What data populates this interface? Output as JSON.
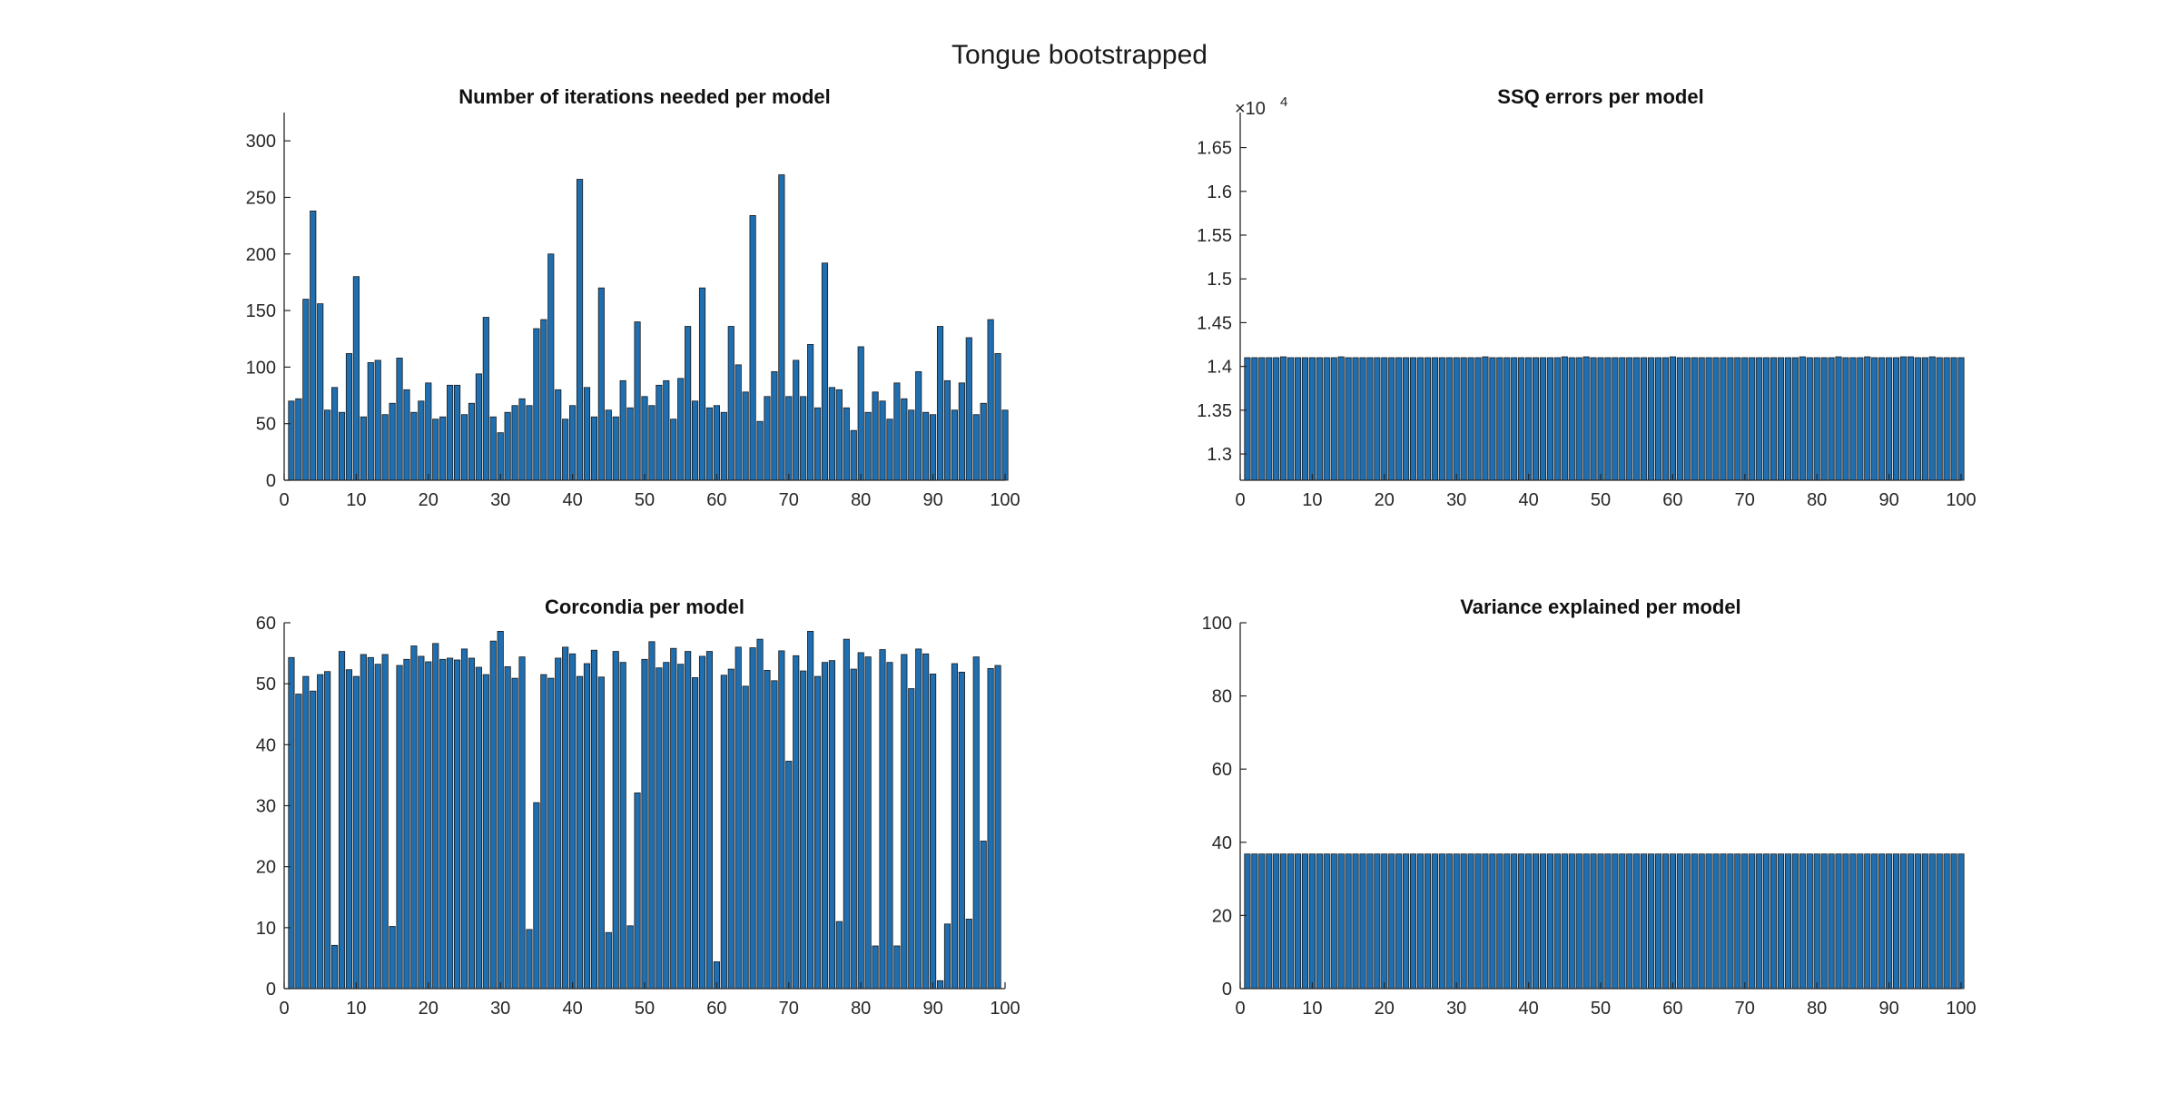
{
  "figure": {
    "title": "Tongue bootstrapped"
  },
  "colors": {
    "bar_fill": "#1f6fb0",
    "bar_edge": "#1a1a1a",
    "axis": "#262626",
    "text": "#262626"
  },
  "chart_data": [
    {
      "type": "bar",
      "title": "Number of iterations needed per model",
      "xlabel": "",
      "ylabel": "",
      "xlim": [
        0,
        100
      ],
      "ylim": [
        0,
        325
      ],
      "xticks": [
        0,
        10,
        20,
        30,
        40,
        50,
        60,
        70,
        80,
        90,
        100
      ],
      "yticks": [
        0,
        50,
        100,
        150,
        200,
        250,
        300
      ],
      "ytick_labels": [
        "0",
        "50",
        "100",
        "150",
        "200",
        "250",
        "300"
      ],
      "exponent_label": "",
      "x": [
        1,
        2,
        3,
        4,
        5,
        6,
        7,
        8,
        9,
        10,
        11,
        12,
        13,
        14,
        15,
        16,
        17,
        18,
        19,
        20,
        21,
        22,
        23,
        24,
        25,
        26,
        27,
        28,
        29,
        30,
        31,
        32,
        33,
        34,
        35,
        36,
        37,
        38,
        39,
        40,
        41,
        42,
        43,
        44,
        45,
        46,
        47,
        48,
        49,
        50,
        51,
        52,
        53,
        54,
        55,
        56,
        57,
        58,
        59,
        60,
        61,
        62,
        63,
        64,
        65,
        66,
        67,
        68,
        69,
        70,
        71,
        72,
        73,
        74,
        75,
        76,
        77,
        78,
        79,
        80,
        81,
        82,
        83,
        84,
        85,
        86,
        87,
        88,
        89,
        90,
        91,
        92,
        93,
        94,
        95,
        96,
        97,
        98,
        99,
        100
      ],
      "values": [
        70,
        72,
        160,
        238,
        156,
        62,
        82,
        60,
        112,
        180,
        56,
        104,
        106,
        58,
        68,
        108,
        80,
        60,
        70,
        86,
        54,
        56,
        84,
        84,
        58,
        68,
        94,
        144,
        56,
        42,
        60,
        66,
        72,
        66,
        134,
        142,
        200,
        80,
        54,
        66,
        266,
        82,
        56,
        170,
        62,
        56,
        88,
        64,
        140,
        74,
        66,
        84,
        88,
        54,
        90,
        136,
        70,
        170,
        64,
        66,
        60,
        136,
        102,
        78,
        234,
        52,
        74,
        96,
        270,
        74,
        106,
        74,
        120,
        64,
        192,
        82,
        80,
        64,
        44,
        118,
        60,
        78,
        70,
        54,
        86,
        72,
        62,
        96,
        60,
        58,
        136,
        88,
        62,
        86,
        126,
        58,
        68,
        142,
        112,
        62
      ]
    },
    {
      "type": "bar",
      "title": "SSQ errors per model",
      "xlabel": "",
      "ylabel": "",
      "xlim": [
        0,
        100
      ],
      "ylim": [
        12700,
        16900
      ],
      "xticks": [
        0,
        10,
        20,
        30,
        40,
        50,
        60,
        70,
        80,
        90,
        100
      ],
      "yticks": [
        13000,
        13500,
        14000,
        14500,
        15000,
        15500,
        16000,
        16500
      ],
      "ytick_labels": [
        "1.3",
        "1.35",
        "1.4",
        "1.45",
        "1.5",
        "1.55",
        "1.6",
        "1.65"
      ],
      "exponent_label": "×10",
      "exponent_power": "4",
      "x": [
        1,
        2,
        3,
        4,
        5,
        6,
        7,
        8,
        9,
        10,
        11,
        12,
        13,
        14,
        15,
        16,
        17,
        18,
        19,
        20,
        21,
        22,
        23,
        24,
        25,
        26,
        27,
        28,
        29,
        30,
        31,
        32,
        33,
        34,
        35,
        36,
        37,
        38,
        39,
        40,
        41,
        42,
        43,
        44,
        45,
        46,
        47,
        48,
        49,
        50,
        51,
        52,
        53,
        54,
        55,
        56,
        57,
        58,
        59,
        60,
        61,
        62,
        63,
        64,
        65,
        66,
        67,
        68,
        69,
        70,
        71,
        72,
        73,
        74,
        75,
        76,
        77,
        78,
        79,
        80,
        81,
        82,
        83,
        84,
        85,
        86,
        87,
        88,
        89,
        90,
        91,
        92,
        93,
        94,
        95,
        96,
        97,
        98,
        99,
        100
      ],
      "values": [
        14100,
        14100,
        14100,
        14100,
        14100,
        14110,
        14100,
        14100,
        14100,
        14100,
        14100,
        14100,
        14100,
        14110,
        14100,
        14100,
        14100,
        14100,
        14100,
        14100,
        14100,
        14100,
        14100,
        14100,
        14100,
        14100,
        14100,
        14100,
        14100,
        14100,
        14100,
        14100,
        14100,
        14110,
        14100,
        14100,
        14100,
        14100,
        14100,
        14100,
        14100,
        14100,
        14100,
        14100,
        14110,
        14100,
        14100,
        14110,
        14100,
        14100,
        14100,
        14100,
        14100,
        14100,
        14100,
        14100,
        14100,
        14100,
        14100,
        14110,
        14100,
        14100,
        14100,
        14100,
        14100,
        14100,
        14100,
        14100,
        14100,
        14100,
        14100,
        14100,
        14100,
        14100,
        14100,
        14100,
        14100,
        14110,
        14100,
        14100,
        14100,
        14100,
        14110,
        14100,
        14100,
        14100,
        14110,
        14100,
        14100,
        14100,
        14100,
        14110,
        14110,
        14100,
        14100,
        14110,
        14100,
        14100,
        14100,
        14100
      ]
    },
    {
      "type": "bar",
      "title": "Corcondia per model",
      "xlabel": "",
      "ylabel": "",
      "xlim": [
        0,
        100
      ],
      "ylim": [
        0,
        60
      ],
      "xticks": [
        0,
        10,
        20,
        30,
        40,
        50,
        60,
        70,
        80,
        90,
        100
      ],
      "yticks": [
        0,
        10,
        20,
        30,
        40,
        50,
        60
      ],
      "ytick_labels": [
        "0",
        "10",
        "20",
        "30",
        "40",
        "50",
        "60"
      ],
      "exponent_label": "",
      "x": [
        1,
        2,
        3,
        4,
        5,
        6,
        7,
        8,
        9,
        10,
        11,
        12,
        13,
        14,
        15,
        16,
        17,
        18,
        19,
        20,
        21,
        22,
        23,
        24,
        25,
        26,
        27,
        28,
        29,
        30,
        31,
        32,
        33,
        34,
        35,
        36,
        37,
        38,
        39,
        40,
        41,
        42,
        43,
        44,
        45,
        46,
        47,
        48,
        49,
        50,
        51,
        52,
        53,
        54,
        55,
        56,
        57,
        58,
        59,
        60,
        61,
        62,
        63,
        64,
        65,
        66,
        67,
        68,
        69,
        70,
        71,
        72,
        73,
        74,
        75,
        76,
        77,
        78,
        79,
        80,
        81,
        82,
        83,
        84,
        85,
        86,
        87,
        88,
        89,
        90,
        91,
        92,
        93,
        94,
        95,
        96,
        97,
        98,
        99,
        100
      ],
      "values": [
        54.3,
        48.3,
        51.2,
        48.8,
        51.5,
        52.0,
        7.1,
        55.3,
        52.3,
        51.2,
        54.8,
        54.3,
        53.2,
        54.8,
        10.2,
        53.0,
        54.0,
        56.2,
        54.5,
        53.6,
        56.6,
        54.0,
        54.2,
        53.9,
        55.7,
        54.2,
        52.7,
        51.5,
        57.0,
        58.6,
        52.8,
        50.9,
        54.4,
        9.7,
        30.5,
        51.5,
        50.9,
        54.2,
        56.0,
        54.9,
        51.2,
        53.3,
        55.5,
        51.1,
        9.2,
        55.3,
        53.5,
        10.3,
        32.1,
        54.0,
        56.9,
        52.6,
        53.5,
        55.8,
        53.2,
        55.3,
        51.0,
        54.5,
        55.3,
        4.4,
        51.4,
        52.4,
        56.0,
        49.6,
        55.9,
        57.3,
        52.2,
        50.5,
        55.4,
        37.3,
        54.6,
        52.1,
        58.6,
        51.2,
        53.5,
        53.8,
        11.0,
        57.3,
        52.4,
        55.1,
        54.4,
        7.0,
        55.6,
        53.5,
        7.0,
        54.8,
        49.2,
        55.7,
        54.9,
        51.6,
        1.3,
        10.6,
        53.3,
        51.9,
        11.4,
        54.4,
        24.2,
        52.5,
        53.0,
        0
      ]
    },
    {
      "type": "bar",
      "title": "Variance explained per model",
      "xlabel": "",
      "ylabel": "",
      "xlim": [
        0,
        100
      ],
      "ylim": [
        0,
        100
      ],
      "xticks": [
        0,
        10,
        20,
        30,
        40,
        50,
        60,
        70,
        80,
        90,
        100
      ],
      "yticks": [
        0,
        20,
        40,
        60,
        80,
        100
      ],
      "ytick_labels": [
        "0",
        "20",
        "40",
        "60",
        "80",
        "100"
      ],
      "exponent_label": "",
      "x": [
        1,
        2,
        3,
        4,
        5,
        6,
        7,
        8,
        9,
        10,
        11,
        12,
        13,
        14,
        15,
        16,
        17,
        18,
        19,
        20,
        21,
        22,
        23,
        24,
        25,
        26,
        27,
        28,
        29,
        30,
        31,
        32,
        33,
        34,
        35,
        36,
        37,
        38,
        39,
        40,
        41,
        42,
        43,
        44,
        45,
        46,
        47,
        48,
        49,
        50,
        51,
        52,
        53,
        54,
        55,
        56,
        57,
        58,
        59,
        60,
        61,
        62,
        63,
        64,
        65,
        66,
        67,
        68,
        69,
        70,
        71,
        72,
        73,
        74,
        75,
        76,
        77,
        78,
        79,
        80,
        81,
        82,
        83,
        84,
        85,
        86,
        87,
        88,
        89,
        90,
        91,
        92,
        93,
        94,
        95,
        96,
        97,
        98,
        99,
        100
      ],
      "values": [
        36.8,
        36.8,
        36.8,
        36.8,
        36.8,
        36.8,
        36.8,
        36.8,
        36.8,
        36.8,
        36.8,
        36.8,
        36.8,
        36.8,
        36.8,
        36.8,
        36.8,
        36.8,
        36.8,
        36.8,
        36.8,
        36.8,
        36.8,
        36.8,
        36.8,
        36.8,
        36.8,
        36.8,
        36.8,
        36.8,
        36.8,
        36.8,
        36.8,
        36.8,
        36.8,
        36.8,
        36.8,
        36.8,
        36.8,
        36.8,
        36.8,
        36.8,
        36.8,
        36.8,
        36.8,
        36.8,
        36.8,
        36.8,
        36.8,
        36.8,
        36.8,
        36.8,
        36.8,
        36.8,
        36.8,
        36.8,
        36.8,
        36.8,
        36.8,
        36.8,
        36.8,
        36.8,
        36.8,
        36.8,
        36.8,
        36.8,
        36.8,
        36.8,
        36.8,
        36.8,
        36.8,
        36.8,
        36.8,
        36.8,
        36.8,
        36.8,
        36.8,
        36.8,
        36.8,
        36.8,
        36.8,
        36.8,
        36.8,
        36.8,
        36.8,
        36.8,
        36.8,
        36.8,
        36.8,
        36.8,
        36.8,
        36.8,
        36.8,
        36.8,
        36.8,
        36.8,
        36.8,
        36.8,
        36.8,
        36.8
      ]
    }
  ]
}
